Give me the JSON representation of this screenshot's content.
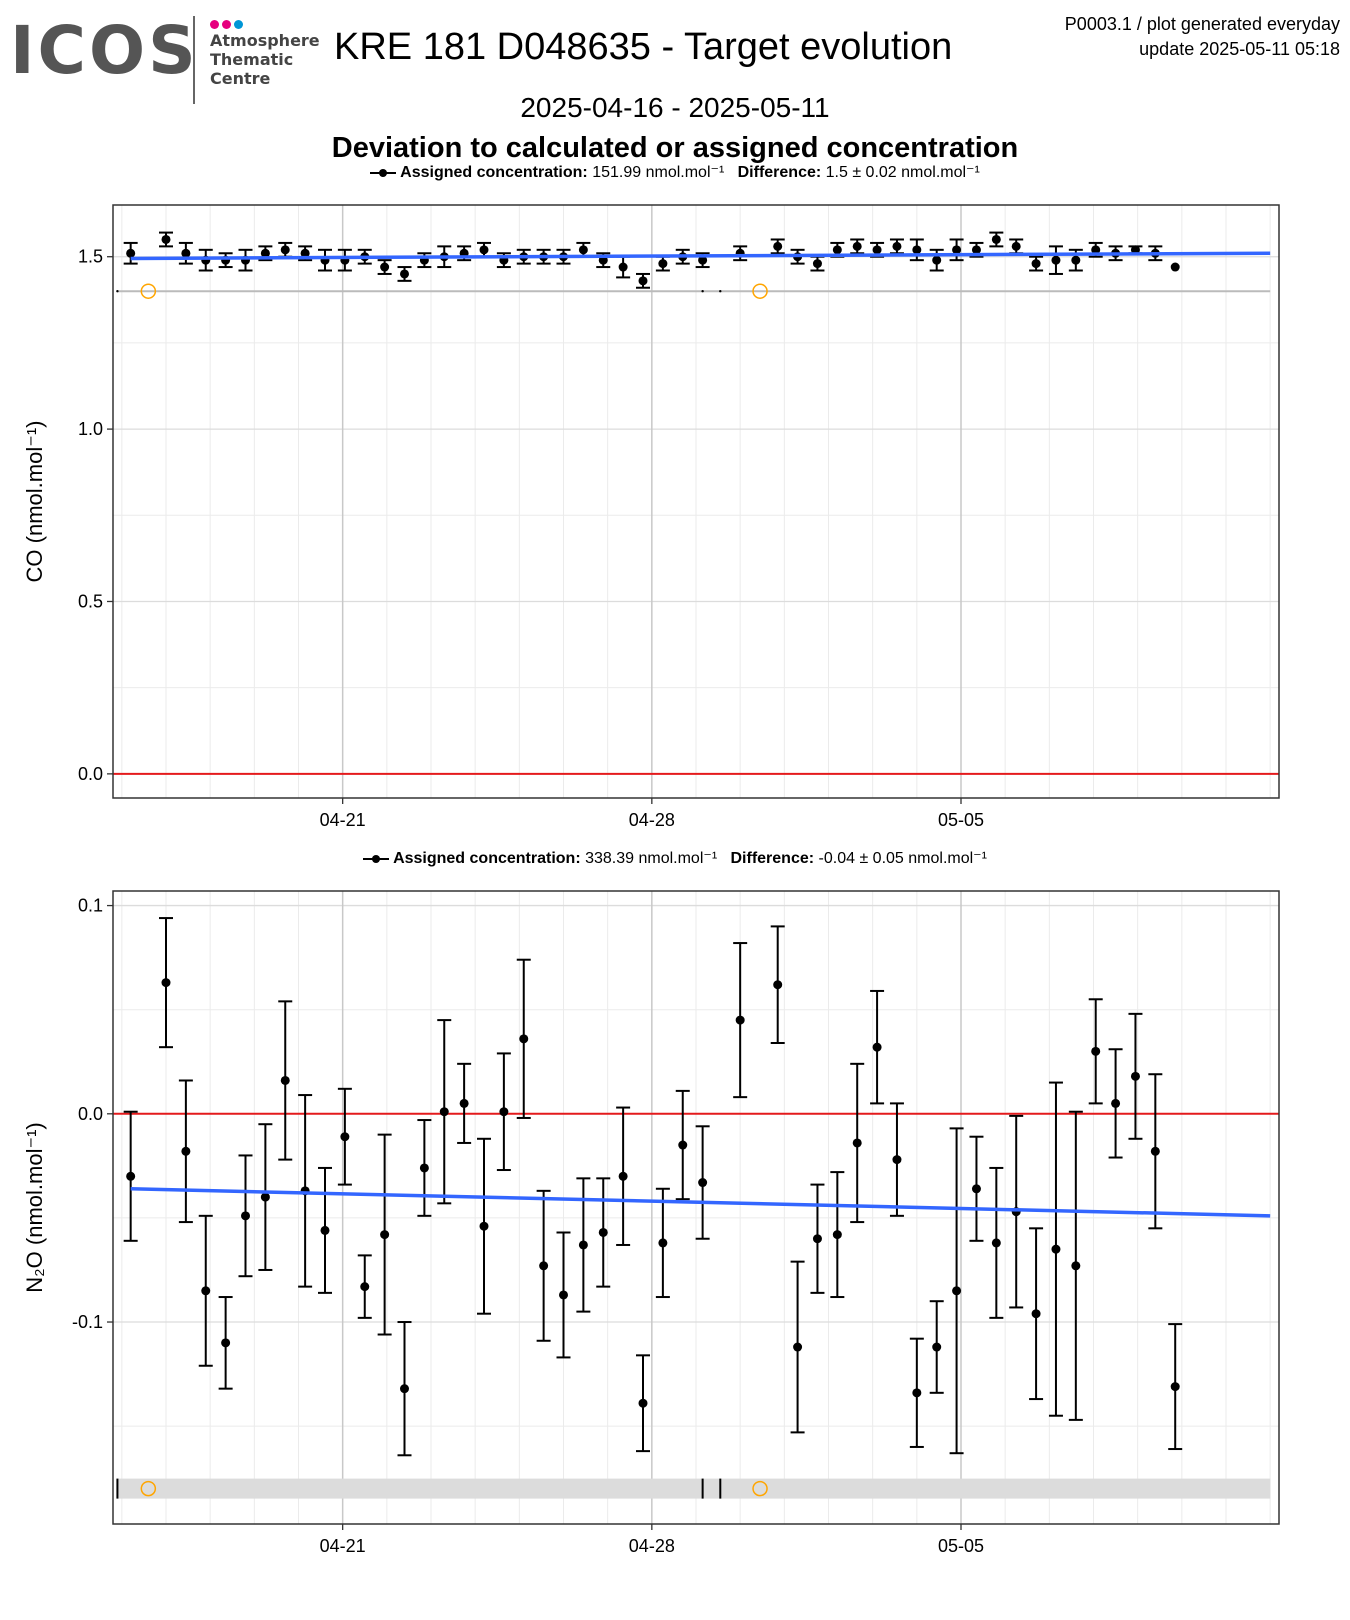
{
  "header": {
    "logo": "ICOS",
    "logo_text": [
      "Atmosphere",
      "Thematic",
      "Centre"
    ],
    "logo_dot_colors": [
      "#e6007e",
      "#e6007e",
      "#0096d6"
    ],
    "title": "KRE 181 D048635 - Target evolution",
    "subtitle": "2025-04-16 - 2025-05-11",
    "heading": "Deviation to calculated or assigned concentration",
    "note_line1": "P0003.1 / plot generated everyday",
    "note_line2": "update  2025-05-11 05:18"
  },
  "chart_data": [
    {
      "type": "scatter",
      "ylabel": "CO (nmol.mol⁻¹)",
      "legend": {
        "assigned_label": "Assigned concentration:",
        "assigned_value": "151.99 nmol.mol⁻¹",
        "diff_label": "Difference:",
        "diff_value": "1.5 ± 0.02 nmol.mol⁻¹"
      },
      "xlim": [
        -0.7,
        25.7
      ],
      "ylim": [
        -0.07,
        1.65
      ],
      "x_ticks": [
        {
          "x": 4.5,
          "label": "04-21"
        },
        {
          "x": 11.5,
          "label": "04-28"
        },
        {
          "x": 18.5,
          "label": "05-05"
        }
      ],
      "y_ticks": [
        {
          "y": 0,
          "label": "0.0"
        },
        {
          "y": 0.5,
          "label": "0.5"
        },
        {
          "y": 1.0,
          "label": "1.0"
        },
        {
          "y": 1.5,
          "label": "1.5"
        }
      ],
      "zero_line": 0,
      "zero_color": "#e41a1c",
      "trend_color": "#3366ff",
      "trend": [
        {
          "x": -0.3,
          "y": 1.495
        },
        {
          "x": 25.5,
          "y": 1.51
        }
      ],
      "points": [
        {
          "x": -0.3,
          "y": 1.51,
          "err": 0.03
        },
        {
          "x": 0.5,
          "y": 1.55,
          "err": 0.02
        },
        {
          "x": 0.95,
          "y": 1.51,
          "err": 0.03
        },
        {
          "x": 1.4,
          "y": 1.49,
          "err": 0.03
        },
        {
          "x": 1.85,
          "y": 1.49,
          "err": 0.02
        },
        {
          "x": 2.3,
          "y": 1.49,
          "err": 0.03
        },
        {
          "x": 2.75,
          "y": 1.51,
          "err": 0.02
        },
        {
          "x": 3.2,
          "y": 1.52,
          "err": 0.02
        },
        {
          "x": 3.65,
          "y": 1.51,
          "err": 0.02
        },
        {
          "x": 4.1,
          "y": 1.49,
          "err": 0.03
        },
        {
          "x": 4.55,
          "y": 1.49,
          "err": 0.03
        },
        {
          "x": 5.0,
          "y": 1.5,
          "err": 0.02
        },
        {
          "x": 5.45,
          "y": 1.47,
          "err": 0.02
        },
        {
          "x": 5.9,
          "y": 1.45,
          "err": 0.02
        },
        {
          "x": 6.35,
          "y": 1.49,
          "err": 0.02
        },
        {
          "x": 6.8,
          "y": 1.5,
          "err": 0.03
        },
        {
          "x": 7.25,
          "y": 1.51,
          "err": 0.02
        },
        {
          "x": 7.7,
          "y": 1.52,
          "err": 0.02
        },
        {
          "x": 8.15,
          "y": 1.49,
          "err": 0.02
        },
        {
          "x": 8.6,
          "y": 1.5,
          "err": 0.02
        },
        {
          "x": 9.05,
          "y": 1.5,
          "err": 0.02
        },
        {
          "x": 9.5,
          "y": 1.5,
          "err": 0.02
        },
        {
          "x": 9.95,
          "y": 1.52,
          "err": 0.02
        },
        {
          "x": 10.4,
          "y": 1.49,
          "err": 0.02
        },
        {
          "x": 10.85,
          "y": 1.47,
          "err": 0.03
        },
        {
          "x": 11.3,
          "y": 1.43,
          "err": 0.02
        },
        {
          "x": 11.75,
          "y": 1.48,
          "err": 0.02
        },
        {
          "x": 12.2,
          "y": 1.5,
          "err": 0.02
        },
        {
          "x": 12.65,
          "y": 1.49,
          "err": 0.02
        },
        {
          "x": 13.5,
          "y": 1.51,
          "err": 0.02
        },
        {
          "x": 14.35,
          "y": 1.53,
          "err": 0.02
        },
        {
          "x": 14.8,
          "y": 1.5,
          "err": 0.02
        },
        {
          "x": 15.25,
          "y": 1.48,
          "err": 0.02
        },
        {
          "x": 15.7,
          "y": 1.52,
          "err": 0.02
        },
        {
          "x": 16.15,
          "y": 1.53,
          "err": 0.02
        },
        {
          "x": 16.6,
          "y": 1.52,
          "err": 0.02
        },
        {
          "x": 17.05,
          "y": 1.53,
          "err": 0.02
        },
        {
          "x": 17.5,
          "y": 1.52,
          "err": 0.03
        },
        {
          "x": 17.95,
          "y": 1.49,
          "err": 0.03
        },
        {
          "x": 18.4,
          "y": 1.52,
          "err": 0.03
        },
        {
          "x": 18.85,
          "y": 1.52,
          "err": 0.02
        },
        {
          "x": 19.3,
          "y": 1.55,
          "err": 0.02
        },
        {
          "x": 19.75,
          "y": 1.53,
          "err": 0.02
        },
        {
          "x": 20.2,
          "y": 1.48,
          "err": 0.02
        },
        {
          "x": 20.65,
          "y": 1.49,
          "err": 0.04
        },
        {
          "x": 21.1,
          "y": 1.49,
          "err": 0.03
        },
        {
          "x": 21.55,
          "y": 1.52,
          "err": 0.02
        },
        {
          "x": 22.0,
          "y": 1.51,
          "err": 0.02
        },
        {
          "x": 22.45,
          "y": 1.52,
          "err": 0.01
        },
        {
          "x": 22.9,
          "y": 1.51,
          "err": 0.02
        },
        {
          "x": 23.35,
          "y": 1.47,
          "err": 0.0
        }
      ],
      "flag_band": {
        "y": 1.4,
        "x_start": -0.6,
        "x_end": 25.5,
        "color": "#bbbbbb"
      },
      "flag_ticks": [
        -0.6,
        12.65,
        13.05
      ],
      "flag_circles": [
        {
          "x": 0.1,
          "y": 1.4
        },
        {
          "x": 13.95,
          "y": 1.4
        }
      ],
      "flag_color": "#ffa500"
    },
    {
      "type": "scatter",
      "ylabel": "N₂O (nmol.mol⁻¹)",
      "legend": {
        "assigned_label": "Assigned concentration:",
        "assigned_value": "338.39 nmol.mol⁻¹",
        "diff_label": "Difference:",
        "diff_value": "-0.04 ± 0.05 nmol.mol⁻¹"
      },
      "xlim": [
        -0.7,
        25.7
      ],
      "ylim": [
        -0.197,
        0.107
      ],
      "x_ticks": [
        {
          "x": 4.5,
          "label": "04-21"
        },
        {
          "x": 11.5,
          "label": "04-28"
        },
        {
          "x": 18.5,
          "label": "05-05"
        }
      ],
      "y_ticks": [
        {
          "y": -0.1,
          "label": "-0.1"
        },
        {
          "y": 0.0,
          "label": "0.0"
        },
        {
          "y": 0.1,
          "label": "0.1"
        }
      ],
      "zero_line": 0,
      "zero_color": "#e41a1c",
      "trend_color": "#3366ff",
      "trend": [
        {
          "x": -0.3,
          "y": -0.036
        },
        {
          "x": 25.5,
          "y": -0.049
        }
      ],
      "points": [
        {
          "x": -0.3,
          "y": -0.03,
          "err": 0.031
        },
        {
          "x": 0.5,
          "y": 0.063,
          "err": 0.031
        },
        {
          "x": 0.95,
          "y": -0.018,
          "err": 0.034
        },
        {
          "x": 1.4,
          "y": -0.085,
          "err": 0.036
        },
        {
          "x": 1.85,
          "y": -0.11,
          "err": 0.022
        },
        {
          "x": 2.3,
          "y": -0.049,
          "err": 0.029
        },
        {
          "x": 2.75,
          "y": -0.04,
          "err": 0.035
        },
        {
          "x": 3.2,
          "y": 0.016,
          "err": 0.038
        },
        {
          "x": 3.65,
          "y": -0.037,
          "err": 0.046
        },
        {
          "x": 4.1,
          "y": -0.056,
          "err": 0.03
        },
        {
          "x": 4.55,
          "y": -0.011,
          "err": 0.023
        },
        {
          "x": 5.0,
          "y": -0.083,
          "err": 0.015
        },
        {
          "x": 5.45,
          "y": -0.058,
          "err": 0.048
        },
        {
          "x": 5.9,
          "y": -0.132,
          "err": 0.032
        },
        {
          "x": 6.35,
          "y": -0.026,
          "err": 0.023
        },
        {
          "x": 6.8,
          "y": 0.001,
          "err": 0.044
        },
        {
          "x": 7.25,
          "y": 0.005,
          "err": 0.019
        },
        {
          "x": 7.7,
          "y": -0.054,
          "err": 0.042
        },
        {
          "x": 8.15,
          "y": 0.001,
          "err": 0.028
        },
        {
          "x": 8.6,
          "y": 0.036,
          "err": 0.038
        },
        {
          "x": 9.05,
          "y": -0.073,
          "err": 0.036
        },
        {
          "x": 9.5,
          "y": -0.087,
          "err": 0.03
        },
        {
          "x": 9.95,
          "y": -0.063,
          "err": 0.032
        },
        {
          "x": 10.4,
          "y": -0.057,
          "err": 0.026
        },
        {
          "x": 10.85,
          "y": -0.03,
          "err": 0.033
        },
        {
          "x": 11.3,
          "y": -0.139,
          "err": 0.023
        },
        {
          "x": 11.75,
          "y": -0.062,
          "err": 0.026
        },
        {
          "x": 12.2,
          "y": -0.015,
          "err": 0.026
        },
        {
          "x": 12.65,
          "y": -0.033,
          "err": 0.027
        },
        {
          "x": 13.5,
          "y": 0.045,
          "err": 0.037
        },
        {
          "x": 14.35,
          "y": 0.062,
          "err": 0.028
        },
        {
          "x": 14.8,
          "y": -0.112,
          "err": 0.041
        },
        {
          "x": 15.25,
          "y": -0.06,
          "err": 0.026
        },
        {
          "x": 15.7,
          "y": -0.058,
          "err": 0.03
        },
        {
          "x": 16.15,
          "y": -0.014,
          "err": 0.038
        },
        {
          "x": 16.6,
          "y": 0.032,
          "err": 0.027
        },
        {
          "x": 17.05,
          "y": -0.022,
          "err": 0.027
        },
        {
          "x": 17.5,
          "y": -0.134,
          "err": 0.026
        },
        {
          "x": 17.95,
          "y": -0.112,
          "err": 0.022
        },
        {
          "x": 18.4,
          "y": -0.085,
          "err": 0.078
        },
        {
          "x": 18.85,
          "y": -0.036,
          "err": 0.025
        },
        {
          "x": 19.3,
          "y": -0.062,
          "err": 0.036
        },
        {
          "x": 19.75,
          "y": -0.047,
          "err": 0.046
        },
        {
          "x": 20.2,
          "y": -0.096,
          "err": 0.041
        },
        {
          "x": 20.65,
          "y": -0.065,
          "err": 0.08
        },
        {
          "x": 21.1,
          "y": -0.073,
          "err": 0.074
        },
        {
          "x": 21.55,
          "y": 0.03,
          "err": 0.025
        },
        {
          "x": 22.0,
          "y": 0.005,
          "err": 0.026
        },
        {
          "x": 22.45,
          "y": 0.018,
          "err": 0.03
        },
        {
          "x": 22.9,
          "y": -0.018,
          "err": 0.037
        },
        {
          "x": 23.35,
          "y": -0.131,
          "err": 0.03
        }
      ],
      "flag_band": {
        "y": -0.18,
        "x_start": -0.6,
        "x_end": 25.5,
        "color": "#dcdcdc"
      },
      "flag_ticks": [
        -0.6,
        12.65,
        13.05
      ],
      "flag_circles": [
        {
          "x": 0.1,
          "y": -0.18
        },
        {
          "x": 13.95,
          "y": -0.18
        }
      ],
      "flag_color": "#ffa500"
    }
  ]
}
